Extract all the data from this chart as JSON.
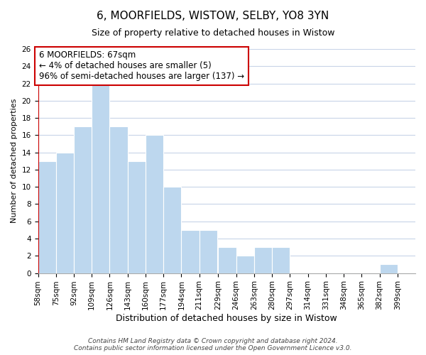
{
  "title": "6, MOORFIELDS, WISTOW, SELBY, YO8 3YN",
  "subtitle": "Size of property relative to detached houses in Wistow",
  "xlabel": "Distribution of detached houses by size in Wistow",
  "ylabel": "Number of detached properties",
  "bar_labels": [
    "58sqm",
    "75sqm",
    "92sqm",
    "109sqm",
    "126sqm",
    "143sqm",
    "160sqm",
    "177sqm",
    "194sqm",
    "211sqm",
    "229sqm",
    "246sqm",
    "263sqm",
    "280sqm",
    "297sqm",
    "314sqm",
    "331sqm",
    "348sqm",
    "365sqm",
    "382sqm",
    "399sqm"
  ],
  "bar_values": [
    13,
    14,
    17,
    22,
    17,
    13,
    16,
    10,
    5,
    5,
    3,
    2,
    3,
    3,
    0,
    0,
    0,
    0,
    0,
    1,
    0
  ],
  "bar_color": "#bdd7ee",
  "bar_edge_color": "#ffffff",
  "background_color": "#ffffff",
  "grid_color": "#c8d4e8",
  "annotation_box_text": "6 MOORFIELDS: 67sqm\n← 4% of detached houses are smaller (5)\n96% of semi-detached houses are larger (137) →",
  "annotation_box_edge_color": "#cc0000",
  "annotation_box_face_color": "#ffffff",
  "vline_color": "#cc0000",
  "ylim": [
    0,
    26
  ],
  "yticks": [
    0,
    2,
    4,
    6,
    8,
    10,
    12,
    14,
    16,
    18,
    20,
    22,
    24,
    26
  ],
  "footer_line1": "Contains HM Land Registry data © Crown copyright and database right 2024.",
  "footer_line2": "Contains public sector information licensed under the Open Government Licence v3.0.",
  "title_fontsize": 11,
  "subtitle_fontsize": 9,
  "xlabel_fontsize": 9,
  "ylabel_fontsize": 8,
  "tick_fontsize": 7.5,
  "annotation_fontsize": 8.5,
  "footer_fontsize": 6.5
}
